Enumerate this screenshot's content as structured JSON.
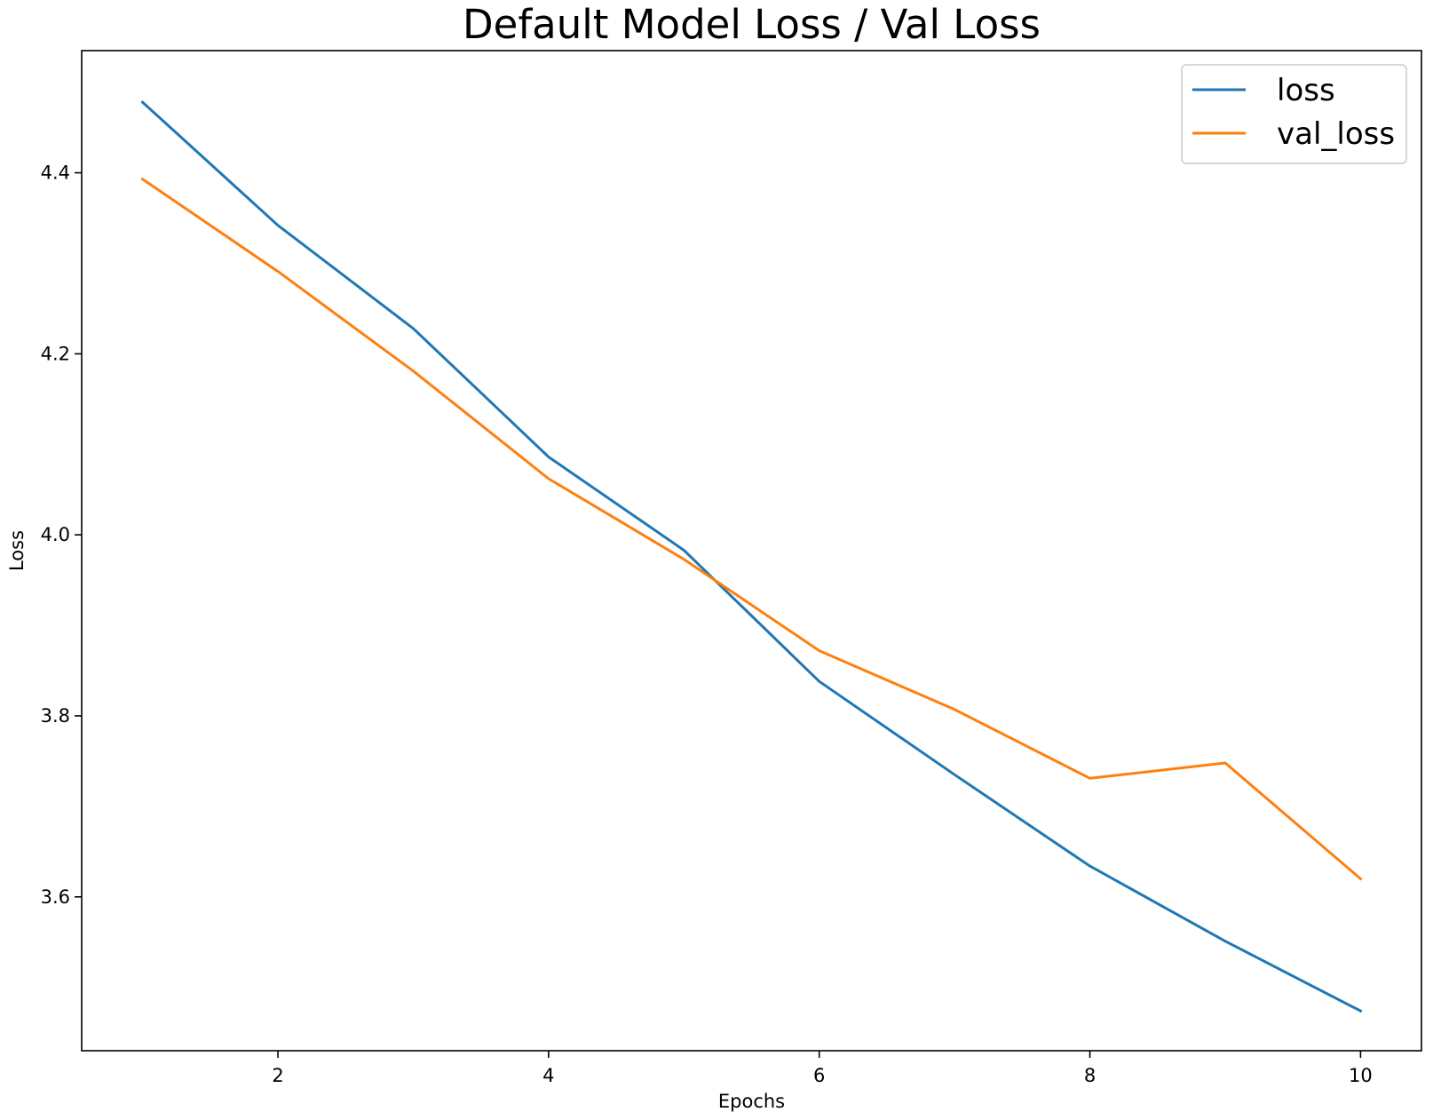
{
  "chart_data": {
    "type": "line",
    "title": "Default Model Loss / Val Loss",
    "xlabel": "Epochs",
    "ylabel": "Loss",
    "x": [
      1,
      2,
      3,
      4,
      5,
      6,
      7,
      8,
      9,
      10
    ],
    "xlim": [
      0.55,
      10.45
    ],
    "ylim": [
      3.43,
      4.535
    ],
    "xticks": [
      2,
      4,
      6,
      8,
      10
    ],
    "yticks": [
      3.6,
      3.8,
      4.0,
      4.2,
      4.4
    ],
    "xtick_labels": [
      "2",
      "4",
      "6",
      "8",
      "10"
    ],
    "ytick_labels": [
      "3.6",
      "3.8",
      "4.0",
      "4.2",
      "4.4"
    ],
    "grid": false,
    "legend_position": "top-right",
    "series": [
      {
        "name": "loss",
        "color": "#1f77b4",
        "values": [
          4.478,
          4.342,
          4.228,
          4.086,
          3.983,
          3.838,
          3.735,
          3.634,
          3.551,
          3.474
        ]
      },
      {
        "name": "val_loss",
        "color": "#ff7f0e",
        "values": [
          4.393,
          4.291,
          4.181,
          4.062,
          3.973,
          3.872,
          3.807,
          3.731,
          3.748,
          3.62
        ]
      }
    ]
  }
}
